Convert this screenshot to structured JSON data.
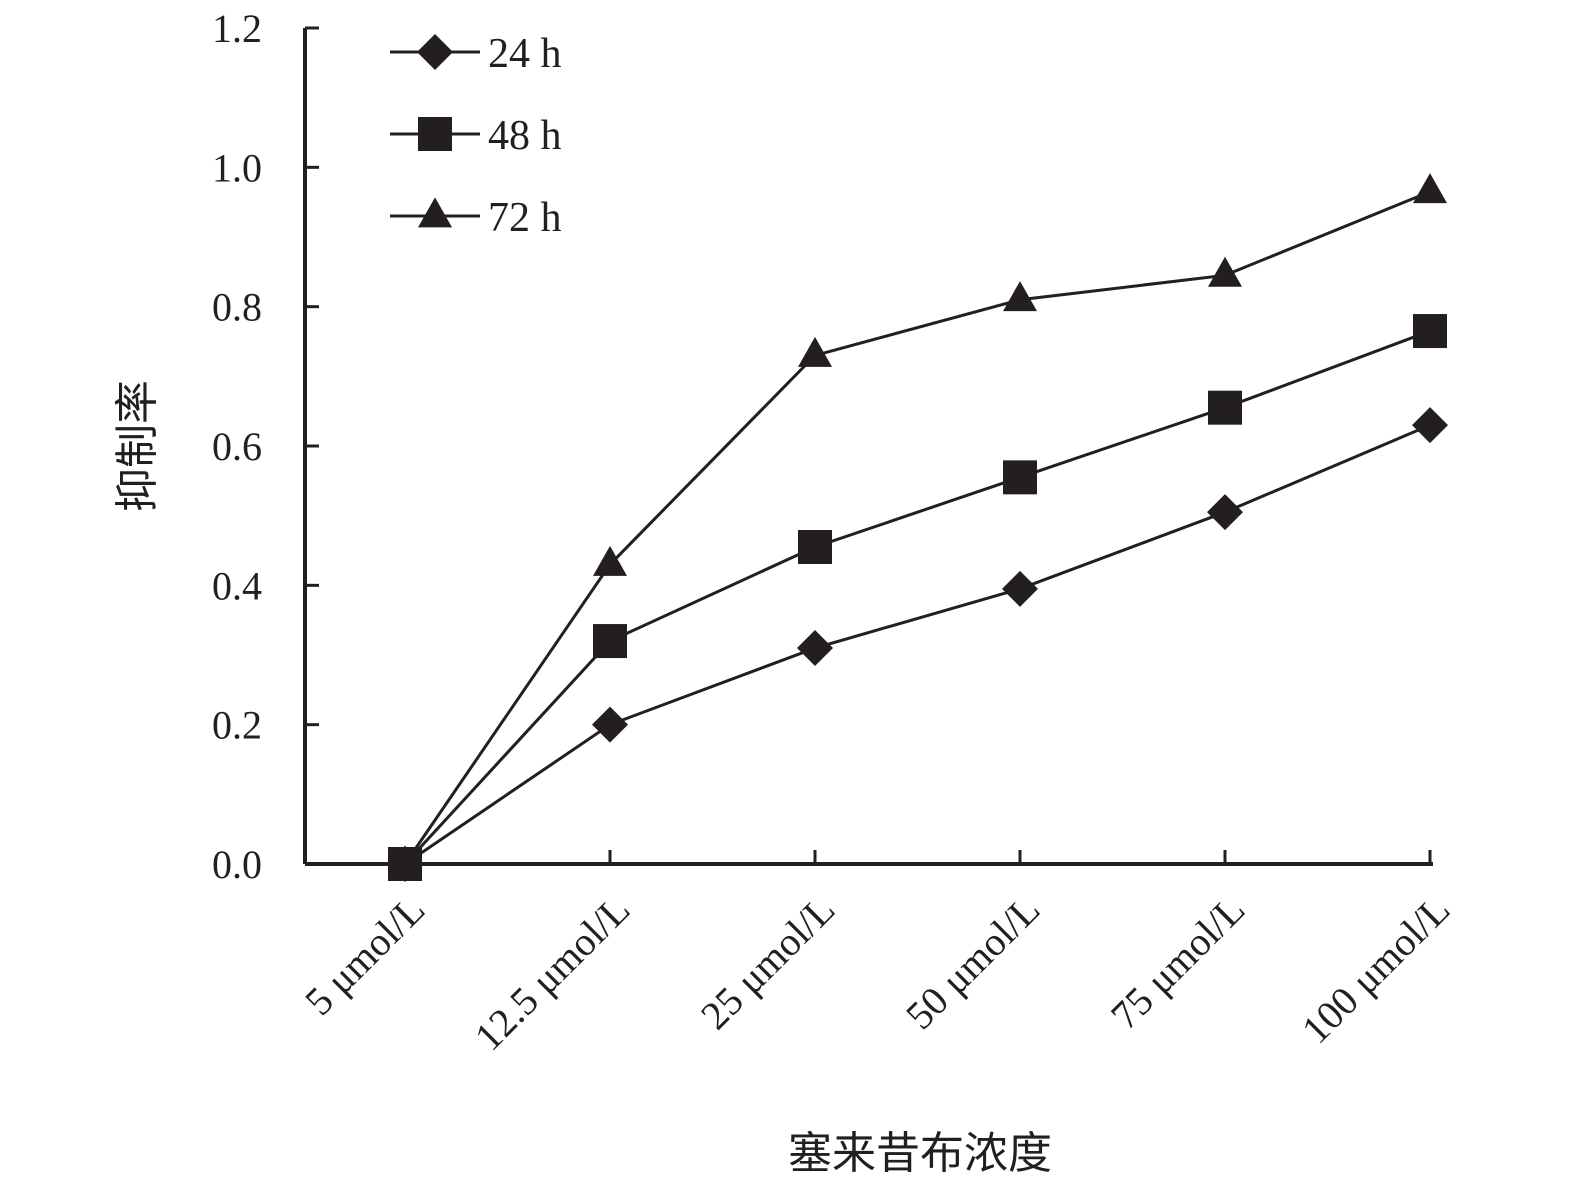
{
  "chart_data": {
    "type": "line",
    "title": "",
    "xlabel": "塞来昔布浓度",
    "ylabel": "抑制率",
    "categories": [
      "5 μmol/L",
      "12.5 μmol/L",
      "25 μmol/L",
      "50 μmol/L",
      "75 μmol/L",
      "100 μmol/L"
    ],
    "ylim": [
      0,
      1.2
    ],
    "yticks": [
      "0.0",
      "0.2",
      "0.4",
      "0.6",
      "0.8",
      "1.0",
      "1.2"
    ],
    "grid": false,
    "legend_position": "top-left",
    "series": [
      {
        "name": "24 h",
        "marker": "diamond",
        "values": [
          0.0,
          0.2,
          0.31,
          0.395,
          0.505,
          0.63
        ]
      },
      {
        "name": "48 h",
        "marker": "square",
        "values": [
          0.0,
          0.32,
          0.455,
          0.555,
          0.655,
          0.765
        ]
      },
      {
        "name": "72 h",
        "marker": "triangle",
        "values": [
          0.0,
          0.43,
          0.73,
          0.81,
          0.845,
          0.965
        ]
      }
    ],
    "colors": {
      "line": "#231f20",
      "marker": "#231f20"
    }
  }
}
